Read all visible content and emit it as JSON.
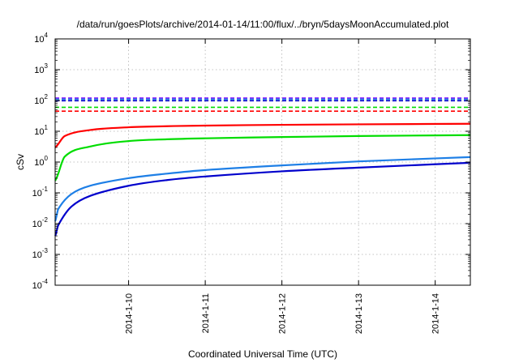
{
  "chart_data": {
    "type": "line",
    "title": "/data/run/goesPlots/archive/2014-01-14/11:00/flux/../bryn/5daysMoonAccumulated.plot",
    "xlabel": "Coordinated Universal Time (UTC)",
    "ylabel": "cSv",
    "x_axis_type": "date",
    "xlim": [
      "2014-01-09T01:00",
      "2014-01-14T11:00"
    ],
    "x_ticks": [
      "2014-1-10",
      "2014-1-11",
      "2014-1-12",
      "2014-1-13",
      "2014-1-14"
    ],
    "y_scale": "log",
    "ylim": [
      0.0001,
      10000
    ],
    "y_ticks": [
      {
        "value": 0.0001,
        "base": "10",
        "exp": "-4"
      },
      {
        "value": 0.001,
        "base": "10",
        "exp": "-3"
      },
      {
        "value": 0.01,
        "base": "10",
        "exp": "-2"
      },
      {
        "value": 0.1,
        "base": "10",
        "exp": "-1"
      },
      {
        "value": 1,
        "base": "10",
        "exp": "0"
      },
      {
        "value": 10,
        "base": "10",
        "exp": "1"
      },
      {
        "value": 100,
        "base": "10",
        "exp": "2"
      },
      {
        "value": 1000,
        "base": "10",
        "exp": "3"
      },
      {
        "value": 10000,
        "base": "10",
        "exp": "4"
      }
    ],
    "grid": true,
    "legend": "none",
    "series": [
      {
        "color": "#ff0000",
        "x": [
          "2014-01-09T01:00",
          "2014-01-09T04:00",
          "2014-01-09T12:00",
          "2014-01-10T00:00",
          "2014-01-10T12:00",
          "2014-01-11T00:00",
          "2014-01-12T00:00",
          "2014-01-13T00:00",
          "2014-01-14T11:00"
        ],
        "y": [
          3,
          7,
          11,
          13.5,
          14.6,
          15.3,
          16.2,
          16.8,
          17.5
        ]
      },
      {
        "color": "#00dd00",
        "x": [
          "2014-01-09T01:00",
          "2014-01-09T04:00",
          "2014-01-09T12:00",
          "2014-01-10T00:00",
          "2014-01-10T12:00",
          "2014-01-11T00:00",
          "2014-01-12T00:00",
          "2014-01-13T00:00",
          "2014-01-14T11:00"
        ],
        "y": [
          0.25,
          1.5,
          3.2,
          4.8,
          5.5,
          5.9,
          6.5,
          7,
          7.5
        ]
      },
      {
        "color": "#1e7fe6",
        "x": [
          "2014-01-09T01:00",
          "2014-01-09T02:00",
          "2014-01-09T06:00",
          "2014-01-09T12:00",
          "2014-01-10T00:00",
          "2014-01-10T12:00",
          "2014-01-11T00:00",
          "2014-01-12T00:00",
          "2014-01-13T00:00",
          "2014-01-14T11:00"
        ],
        "y": [
          0.012,
          0.03,
          0.09,
          0.17,
          0.3,
          0.42,
          0.55,
          0.78,
          1.05,
          1.45
        ]
      },
      {
        "color": "#0000cc",
        "x": [
          "2014-01-09T01:00",
          "2014-01-09T02:00",
          "2014-01-09T06:00",
          "2014-01-09T12:00",
          "2014-01-10T00:00",
          "2014-01-10T12:00",
          "2014-01-11T00:00",
          "2014-01-12T00:00",
          "2014-01-13T00:00",
          "2014-01-14T11:00"
        ],
        "y": [
          0.004,
          0.009,
          0.035,
          0.08,
          0.17,
          0.26,
          0.34,
          0.5,
          0.66,
          0.95
        ]
      }
    ],
    "reference_lines": [
      {
        "color": "#8000ff",
        "y": 120
      },
      {
        "color": "#1e7fe6",
        "y": 110
      },
      {
        "color": "#0000cc",
        "y": 98
      },
      {
        "color": "#00dd00",
        "y": 60
      },
      {
        "color": "#ff0000",
        "y": 45
      }
    ]
  }
}
